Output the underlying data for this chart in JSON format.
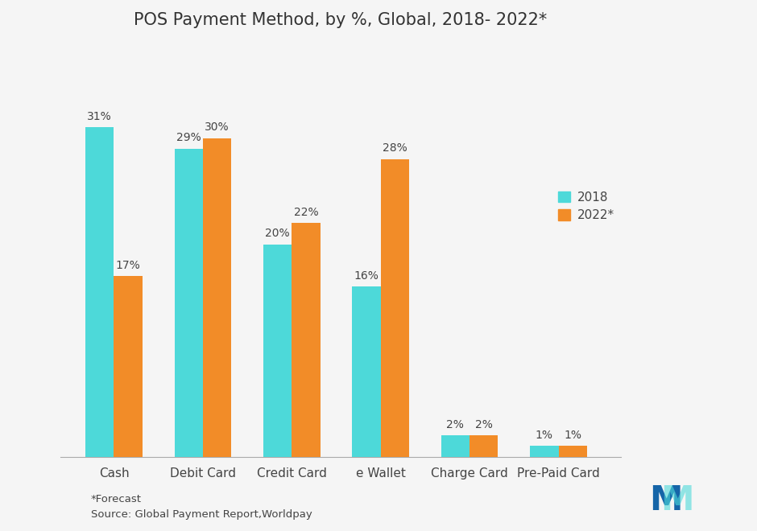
{
  "title": "POS Payment Method, by %, Global, 2018- 2022*",
  "categories": [
    "Cash",
    "Debit Card",
    "Credit Card",
    "e Wallet",
    "Charge Card",
    "Pre-Paid Card"
  ],
  "values_2018": [
    31,
    29,
    20,
    16,
    2,
    1
  ],
  "values_2022": [
    17,
    30,
    22,
    28,
    2,
    1
  ],
  "color_2018": "#4DD9D9",
  "color_2022": "#F28C28",
  "legend_labels": [
    "2018",
    "2022*"
  ],
  "footnote1": "*Forecast",
  "footnote2": "Source: Global Payment Report,Worldpay",
  "bar_width": 0.32,
  "ylim": [
    0,
    38
  ],
  "background_color": "#f5f5f5",
  "plot_bg_color": "#f5f5f5",
  "title_fontsize": 15,
  "label_fontsize": 11,
  "tick_fontsize": 11,
  "annotation_fontsize": 10
}
